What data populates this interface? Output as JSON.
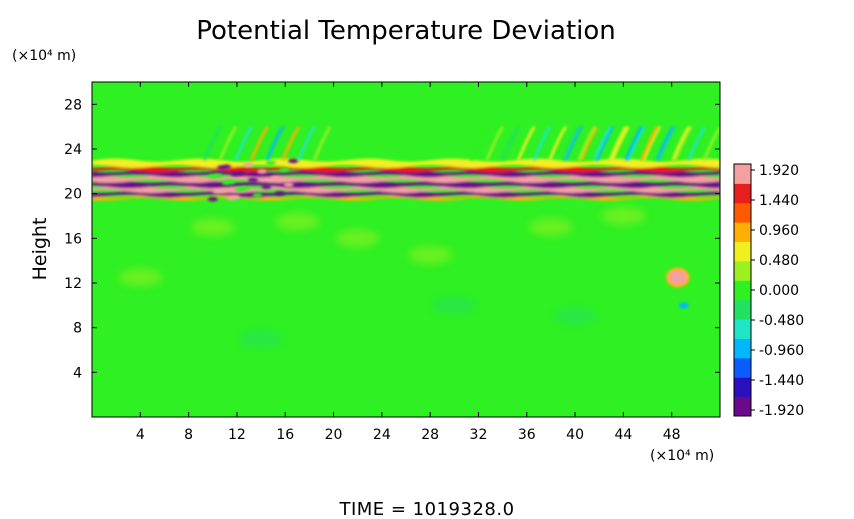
{
  "chart_data": {
    "type": "heatmap",
    "title": "Potential Temperature Deviation",
    "ylabel": "Height",
    "xlabel": "",
    "x_units": "(×10⁴ m)",
    "y_units": "(×10⁴ m)",
    "xlim": [
      0,
      52
    ],
    "ylim": [
      0,
      30
    ],
    "x_ticks": [
      "4",
      "8",
      "12",
      "16",
      "20",
      "24",
      "28",
      "32",
      "36",
      "40",
      "44",
      "48"
    ],
    "y_ticks": [
      "4",
      "8",
      "12",
      "16",
      "20",
      "24",
      "28"
    ],
    "colorbar": {
      "range": [
        -1.92,
        1.92
      ],
      "ticks": [
        "1.920",
        "1.440",
        "0.960",
        "0.480",
        "0.000",
        "-0.480",
        "-0.960",
        "-1.440",
        "-1.920"
      ],
      "colors": [
        "#6a0a8a",
        "#2b10c0",
        "#0a5cff",
        "#00b8ff",
        "#20e6c8",
        "#22e060",
        "#2ef022",
        "#9af020",
        "#f0f020",
        "#ffb000",
        "#ff5a00",
        "#e81e1e",
        "#f5a0a0"
      ]
    },
    "background_value": 0.0,
    "features": [
      {
        "name": "wave band",
        "x_range": [
          0,
          52
        ],
        "y_range": [
          19.5,
          23
        ],
        "amplitude": 1.92
      },
      {
        "name": "gravity wave field",
        "x_range": [
          9,
          52
        ],
        "y_range": [
          23,
          27
        ],
        "amplitude": 0.96
      },
      {
        "name": "warm anomaly",
        "x": 48.5,
        "y": 12.5,
        "value": 1.92
      },
      {
        "name": "cool anomaly",
        "x": 49,
        "y": 10,
        "value": -0.96
      }
    ]
  },
  "footer": {
    "time_text": "TIME  =  1019328.0"
  }
}
